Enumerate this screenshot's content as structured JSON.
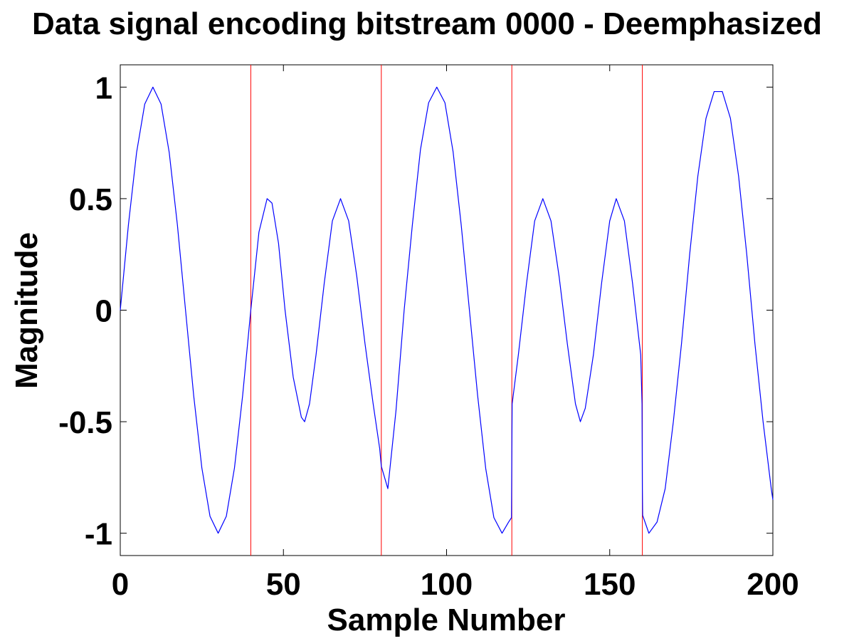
{
  "chart_data": {
    "type": "line",
    "title": "Data signal encoding bitstream 0000 - Deemphasized",
    "xlabel": "Sample Number",
    "ylabel": "Magnitude",
    "xlim": [
      0,
      200
    ],
    "ylim": [
      -1.1,
      1.1
    ],
    "xticks": [
      0,
      50,
      100,
      150,
      200
    ],
    "xtick_labels": [
      "0",
      "50",
      "100",
      "150",
      "200"
    ],
    "yticks": [
      -1,
      -0.5,
      0,
      0.5,
      1
    ],
    "ytick_labels": [
      "-1",
      "-0.5",
      "0",
      "0.5",
      "1"
    ],
    "grid": false,
    "boundaries": [
      40,
      80,
      120,
      160
    ],
    "series": [
      {
        "color": "#0000ff",
        "x": [
          0,
          2.5,
          5,
          7.5,
          10,
          12.5,
          15,
          17.5,
          20,
          22.5,
          25,
          27.5,
          30,
          32.5,
          35,
          37.5,
          40,
          42.5,
          45,
          46.5,
          48.5,
          50.5,
          53,
          55.5,
          56.5,
          58,
          60,
          62.5,
          65,
          67.5,
          70,
          72.5,
          75,
          77.5,
          79.5,
          80,
          82,
          84.5,
          87,
          89.5,
          92,
          94.5,
          97,
          99.5,
          102,
          104.5,
          107,
          109.5,
          112,
          114.5,
          117,
          119,
          119.9,
          120,
          120.1,
          122,
          124.5,
          127,
          129.5,
          132,
          134.5,
          137,
          139.5,
          141,
          142.5,
          145,
          147.5,
          150,
          152,
          154.5,
          157,
          159.5,
          159.9,
          160,
          160.1,
          162,
          164.5,
          167,
          169.5,
          172,
          174.5,
          177,
          179.5,
          182,
          184.5,
          187,
          189.5,
          192,
          194.5,
          197,
          199.5,
          200
        ],
        "y": [
          0,
          0.383,
          0.707,
          0.924,
          1,
          0.924,
          0.707,
          0.383,
          0,
          -0.383,
          -0.707,
          -0.924,
          -1,
          -0.924,
          -0.707,
          -0.383,
          0,
          0.35,
          0.5,
          0.48,
          0.3,
          0,
          -0.3,
          -0.48,
          -0.5,
          -0.42,
          -0.2,
          0.12,
          0.4,
          0.5,
          0.4,
          0.15,
          -0.15,
          -0.42,
          -0.62,
          -0.7,
          -0.8,
          -0.45,
          0,
          0.38,
          0.72,
          0.93,
          1,
          0.93,
          0.71,
          0.38,
          0,
          -0.38,
          -0.71,
          -0.93,
          -1,
          -0.95,
          -0.93,
          -0.63,
          -0.42,
          -0.2,
          0.12,
          0.4,
          0.5,
          0.4,
          0.15,
          -0.15,
          -0.42,
          -0.5,
          -0.44,
          -0.2,
          0.12,
          0.4,
          0.5,
          0.4,
          0.12,
          -0.2,
          -0.42,
          -0.8,
          -0.92,
          -1,
          -0.95,
          -0.8,
          -0.5,
          -0.15,
          0.25,
          0.6,
          0.86,
          0.98,
          0.98,
          0.86,
          0.6,
          0.25,
          -0.15,
          -0.5,
          -0.8,
          -0.85
        ]
      }
    ],
    "colors": {
      "signal": "#0000ff",
      "boundary": "#ff0000",
      "axes": "#000000"
    }
  }
}
